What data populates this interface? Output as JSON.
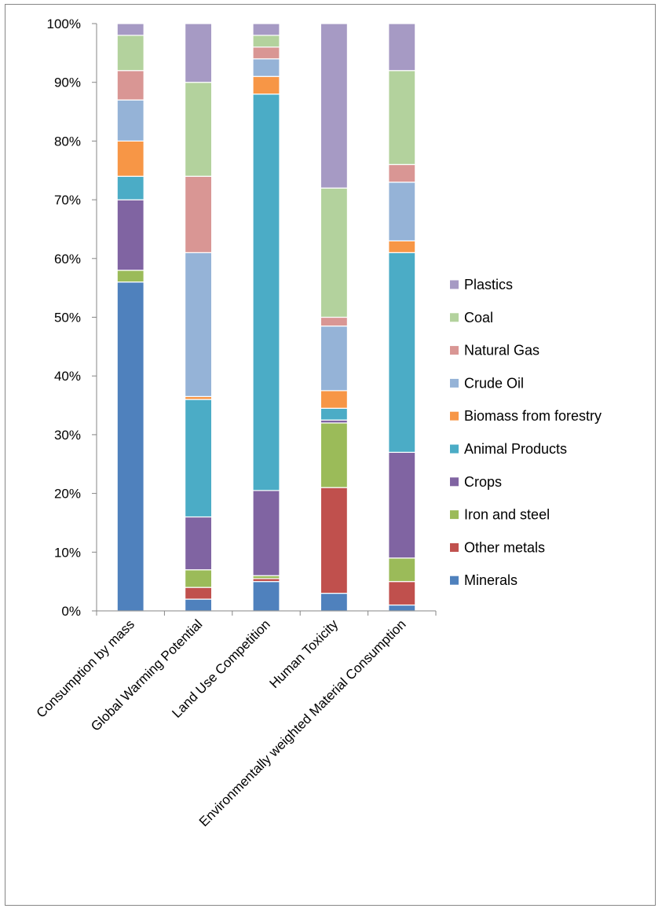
{
  "chart_data": {
    "type": "bar",
    "stacked": true,
    "percent": true,
    "title": "",
    "xlabel": "",
    "ylabel": "",
    "ylim": [
      0,
      100
    ],
    "yticks": [
      "0%",
      "10%",
      "20%",
      "30%",
      "40%",
      "50%",
      "60%",
      "70%",
      "80%",
      "90%",
      "100%"
    ],
    "grid": false,
    "legend_position": "right",
    "categories": [
      "Consumption by mass",
      "Global Warming Potential",
      "Land Use Competition",
      "Human Toxicity",
      "Environmentally weighted Material Consumption"
    ],
    "series": [
      {
        "name": "Minerals",
        "color": "#4F81BD",
        "values": [
          56,
          2,
          5,
          3,
          1
        ]
      },
      {
        "name": "Other metals",
        "color": "#C0504D",
        "values": [
          0,
          2,
          0.5,
          18,
          4
        ]
      },
      {
        "name": "Iron and steel",
        "color": "#9BBB59",
        "values": [
          2,
          3,
          0.5,
          11,
          4
        ]
      },
      {
        "name": "Crops",
        "color": "#8064A2",
        "values": [
          12,
          9,
          14.5,
          0.5,
          18
        ]
      },
      {
        "name": "Animal Products",
        "color": "#4BACC6",
        "values": [
          4,
          20,
          67.5,
          2,
          34
        ]
      },
      {
        "name": "Biomass from forestry",
        "color": "#F79646",
        "values": [
          6,
          0.5,
          3,
          3,
          2
        ]
      },
      {
        "name": "Crude Oil",
        "color": "#95B3D7",
        "values": [
          7,
          24.5,
          3,
          11,
          10
        ]
      },
      {
        "name": "Natural Gas",
        "color": "#D99694",
        "values": [
          5,
          13,
          2,
          1.5,
          3
        ]
      },
      {
        "name": "Coal",
        "color": "#B3D29D",
        "values": [
          6,
          16,
          2,
          22,
          16
        ]
      },
      {
        "name": "Plastics",
        "color": "#A69AC4",
        "values": [
          2,
          10,
          2,
          28,
          8
        ]
      }
    ]
  }
}
